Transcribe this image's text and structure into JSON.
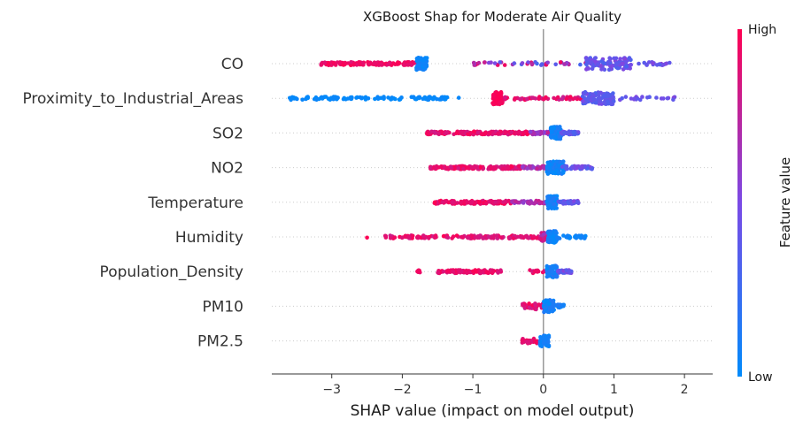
{
  "chart_data": {
    "type": "scatter",
    "title": "XGBoost Shap for Moderate Air Quality",
    "xlabel": "SHAP value (impact on model output)",
    "xlim": [
      -3.85,
      2.4
    ],
    "xticks": [
      -3,
      -2,
      -1,
      0,
      1,
      2
    ],
    "xtick_labels": [
      "−3",
      "−2",
      "−1",
      "0",
      "1",
      "2"
    ],
    "colorbar": {
      "label": "Feature value",
      "high": "High",
      "low": "Low",
      "low_color": "#008bfb",
      "high_color": "#ff0052"
    },
    "features": [
      {
        "name": "CO",
        "clusters": [
          {
            "x": [
              -3.15,
              -1.8
            ],
            "n": 130,
            "c": [
              0.88,
              1.0
            ]
          },
          {
            "x": [
              -1.8,
              -1.65
            ],
            "n": 90,
            "c": [
              0.0,
              0.1
            ],
            "spread": 1.0
          },
          {
            "x": [
              -1.0,
              0.9
            ],
            "n": 55,
            "c": [
              0.25,
              1.0
            ]
          },
          {
            "x": [
              0.6,
              1.25
            ],
            "n": 110,
            "c": [
              0.3,
              0.55
            ],
            "spread": 1.0
          },
          {
            "x": [
              1.2,
              1.8
            ],
            "n": 20,
            "c": [
              0.35,
              0.55
            ]
          }
        ]
      },
      {
        "name": "Proximity_to_Industrial_Areas",
        "clusters": [
          {
            "x": [
              -3.6,
              -1.35
            ],
            "n": 110,
            "c": [
              0.0,
              0.05
            ]
          },
          {
            "x": [
              -1.2,
              -1.2
            ],
            "n": 1,
            "c": [
              0.0,
              0.05
            ]
          },
          {
            "x": [
              -0.72,
              -0.58
            ],
            "n": 80,
            "c": [
              0.95,
              1.0
            ],
            "spread": 1.0
          },
          {
            "x": [
              -0.55,
              0.6
            ],
            "n": 55,
            "c": [
              0.75,
              1.0
            ]
          },
          {
            "x": [
              0.55,
              1.0
            ],
            "n": 90,
            "c": [
              0.3,
              0.5
            ],
            "spread": 1.0
          },
          {
            "x": [
              1.0,
              2.1
            ],
            "n": 22,
            "c": [
              0.35,
              0.55
            ]
          }
        ]
      },
      {
        "name": "SO2",
        "clusters": [
          {
            "x": [
              -1.65,
              -0.2
            ],
            "n": 150,
            "c": [
              0.82,
              1.0
            ]
          },
          {
            "x": [
              -0.2,
              0.1
            ],
            "n": 40,
            "c": [
              0.55,
              0.8
            ]
          },
          {
            "x": [
              0.1,
              0.25
            ],
            "n": 80,
            "c": [
              0.0,
              0.15
            ],
            "spread": 1.0
          },
          {
            "x": [
              0.25,
              0.5
            ],
            "n": 45,
            "c": [
              0.3,
              0.5
            ]
          }
        ]
      },
      {
        "name": "NO2",
        "clusters": [
          {
            "x": [
              -1.6,
              -0.3
            ],
            "n": 150,
            "c": [
              0.82,
              1.0
            ]
          },
          {
            "x": [
              -0.3,
              0.05
            ],
            "n": 40,
            "c": [
              0.55,
              0.8
            ]
          },
          {
            "x": [
              0.05,
              0.3
            ],
            "n": 100,
            "c": [
              0.0,
              0.15
            ],
            "spread": 1.0
          },
          {
            "x": [
              0.25,
              0.7
            ],
            "n": 55,
            "c": [
              0.3,
              0.55
            ]
          }
        ]
      },
      {
        "name": "Temperature",
        "clusters": [
          {
            "x": [
              -1.55,
              -0.45
            ],
            "n": 120,
            "c": [
              0.85,
              1.0
            ]
          },
          {
            "x": [
              -0.45,
              0.05
            ],
            "n": 40,
            "c": [
              0.55,
              0.8
            ]
          },
          {
            "x": [
              0.05,
              0.2
            ],
            "n": 90,
            "c": [
              0.0,
              0.15
            ],
            "spread": 1.0
          },
          {
            "x": [
              0.2,
              0.5
            ],
            "n": 45,
            "c": [
              0.3,
              0.55
            ]
          }
        ]
      },
      {
        "name": "Humidity",
        "clusters": [
          {
            "x": [
              -2.5,
              -2.5
            ],
            "n": 1,
            "c": [
              0.95,
              1.0
            ]
          },
          {
            "x": [
              -2.25,
              -0.05
            ],
            "n": 140,
            "c": [
              0.8,
              1.0
            ]
          },
          {
            "x": [
              -0.05,
              0.1
            ],
            "n": 40,
            "c": [
              0.6,
              0.9
            ],
            "spread": 0.7
          },
          {
            "x": [
              0.05,
              0.2
            ],
            "n": 70,
            "c": [
              0.0,
              0.15
            ],
            "spread": 1.0
          },
          {
            "x": [
              0.2,
              0.6
            ],
            "n": 25,
            "c": [
              0.0,
              0.1
            ]
          }
        ]
      },
      {
        "name": "Population_Density",
        "clusters": [
          {
            "x": [
              -1.8,
              -1.75
            ],
            "n": 8,
            "c": [
              0.9,
              1.0
            ]
          },
          {
            "x": [
              -1.5,
              -0.6
            ],
            "n": 90,
            "c": [
              0.85,
              1.0
            ]
          },
          {
            "x": [
              -0.2,
              0.05
            ],
            "n": 15,
            "c": [
              0.8,
              1.0
            ]
          },
          {
            "x": [
              0.05,
              0.2
            ],
            "n": 80,
            "c": [
              0.0,
              0.2
            ],
            "spread": 1.0
          },
          {
            "x": [
              0.2,
              0.4
            ],
            "n": 25,
            "c": [
              0.3,
              0.55
            ]
          }
        ]
      },
      {
        "name": "PM10",
        "clusters": [
          {
            "x": [
              -0.3,
              0.0
            ],
            "n": 40,
            "c": [
              0.8,
              1.0
            ],
            "spread": 0.5
          },
          {
            "x": [
              0.0,
              0.15
            ],
            "n": 60,
            "c": [
              0.0,
              0.15
            ],
            "spread": 1.0
          },
          {
            "x": [
              0.15,
              0.3
            ],
            "n": 25,
            "c": [
              0.0,
              0.15
            ]
          }
        ]
      },
      {
        "name": "PM2.5",
        "clusters": [
          {
            "x": [
              -0.3,
              -0.05
            ],
            "n": 35,
            "c": [
              0.85,
              1.0
            ],
            "spread": 0.4
          },
          {
            "x": [
              -0.05,
              0.08
            ],
            "n": 50,
            "c": [
              0.0,
              0.15
            ],
            "spread": 0.9
          }
        ]
      }
    ]
  }
}
